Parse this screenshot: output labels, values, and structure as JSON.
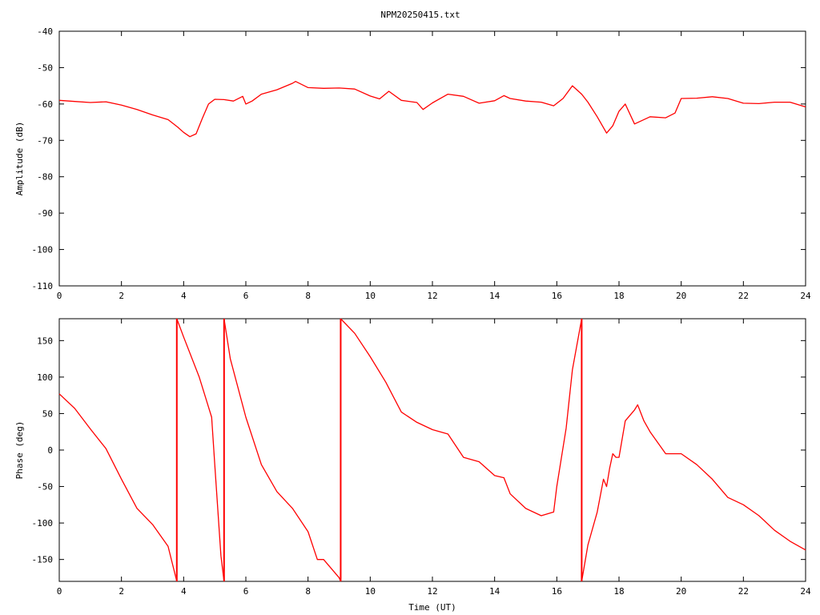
{
  "title": "NPM20250415.txt",
  "colors": {
    "trace": "#ff0000",
    "axes": "#000000",
    "background": "#ffffff"
  },
  "chart_data": [
    {
      "type": "line",
      "title": "NPM20250415.txt",
      "xlabel": "",
      "ylabel": "Amplitude (dB)",
      "xlim": [
        0,
        24
      ],
      "ylim": [
        -110,
        -40
      ],
      "x_ticks": [
        "0",
        "2",
        "4",
        "6",
        "8",
        "10",
        "12",
        "14",
        "16",
        "18",
        "20",
        "22",
        "24"
      ],
      "y_ticks": [
        "-40",
        "-50",
        "-60",
        "-70",
        "-80",
        "-90",
        "-100",
        "-110"
      ],
      "grid": false,
      "series": [
        {
          "x": [
            0,
            0.5,
            1,
            1.5,
            2,
            2.5,
            3,
            3.5,
            3.8,
            4,
            4.2,
            4.4,
            4.6,
            4.8,
            5,
            5.3,
            5.6,
            5.9,
            6,
            6.2,
            6.5,
            7,
            7.5,
            7.6,
            8,
            8.5,
            9,
            9.5,
            10,
            10.3,
            10.6,
            11,
            11.5,
            11.7,
            12,
            12.5,
            13,
            13.5,
            14,
            14.3,
            14.5,
            15,
            15.5,
            15.9,
            16.2,
            16.5,
            16.8,
            17,
            17.3,
            17.6,
            17.8,
            18,
            18.2,
            18.5,
            19,
            19.5,
            19.8,
            20,
            20.5,
            21,
            21.5,
            22,
            22.5,
            23,
            23.5,
            24
          ],
          "y": [
            -59,
            -59.3,
            -59.6,
            -59.4,
            -60.3,
            -61.5,
            -63,
            -64.3,
            -66.3,
            -67.8,
            -69,
            -68.2,
            -64,
            -60,
            -58.7,
            -58.8,
            -59.2,
            -57.9,
            -60,
            -59.2,
            -57.3,
            -56.1,
            -54.3,
            -53.8,
            -55.5,
            -55.7,
            -55.6,
            -55.9,
            -57.8,
            -58.6,
            -56.5,
            -59,
            -59.6,
            -61.5,
            -59.7,
            -57.3,
            -57.9,
            -59.8,
            -59.1,
            -57.7,
            -58.5,
            -59.2,
            -59.5,
            -60.5,
            -58.5,
            -55,
            -57.3,
            -59.5,
            -63.5,
            -68,
            -66,
            -62,
            -60,
            -65.5,
            -63.5,
            -63.8,
            -62.5,
            -58.5,
            -58.4,
            -58,
            -58.5,
            -59.8,
            -59.9,
            -59.5,
            -59.5,
            -60.8
          ]
        }
      ]
    },
    {
      "type": "line",
      "title": "",
      "xlabel": "Time (UT)",
      "ylabel": "Phase (deg)",
      "xlim": [
        0,
        24
      ],
      "ylim": [
        -180,
        180
      ],
      "x_ticks": [
        "0",
        "2",
        "4",
        "6",
        "8",
        "10",
        "12",
        "14",
        "16",
        "18",
        "20",
        "22",
        "24"
      ],
      "y_ticks": [
        "150",
        "100",
        "50",
        "0",
        "-50",
        "-100",
        "-150"
      ],
      "grid": false,
      "series": [
        {
          "segments": [
            {
              "x": [
                0,
                0.5,
                1,
                1.5,
                2,
                2.5,
                3,
                3.5,
                3.78
              ],
              "y": [
                77,
                57,
                29,
                2,
                -40,
                -80,
                -102,
                -132,
                -180
              ]
            },
            {
              "x": [
                3.78,
                4,
                4.5,
                4.9,
                5,
                5.2,
                5.3
              ],
              "y": [
                180,
                155,
                100,
                45,
                -20,
                -145,
                -180
              ]
            },
            {
              "x": [
                5.3,
                5.5,
                6,
                6.5,
                7,
                7.5,
                8,
                8.3,
                8.5,
                9,
                9.05
              ],
              "y": [
                180,
                125,
                45,
                -20,
                -57,
                -80,
                -112,
                -150,
                -150,
                -175,
                -180
              ]
            },
            {
              "x": [
                9.05,
                9.5,
                10,
                10.5,
                11,
                11.5,
                12,
                12.5,
                13,
                13.5,
                14,
                14.3,
                14.5,
                15,
                15.5,
                15.9,
                16,
                16.3,
                16.5,
                16.8
              ],
              "y": [
                180,
                160,
                128,
                93,
                52,
                38,
                28,
                22,
                -10,
                -16,
                -35,
                -38,
                -60,
                -80,
                -90,
                -85,
                -50,
                30,
                110,
                180
              ]
            },
            {
              "x": [
                16.8,
                17,
                17.3,
                17.5,
                17.6,
                17.7,
                17.8,
                17.9,
                18,
                18.2,
                18.5,
                18.6,
                18.8,
                19,
                19.5,
                20,
                20.5,
                21,
                21.5,
                22,
                22.5,
                23,
                23.5,
                24
              ],
              "y": [
                -180,
                -130,
                -85,
                -40,
                -50,
                -25,
                -5,
                -10,
                -10,
                40,
                55,
                62,
                40,
                25,
                -5,
                -5,
                -20,
                -40,
                -65,
                -75,
                -90,
                -110,
                -125,
                -137
              ]
            }
          ]
        }
      ]
    }
  ]
}
